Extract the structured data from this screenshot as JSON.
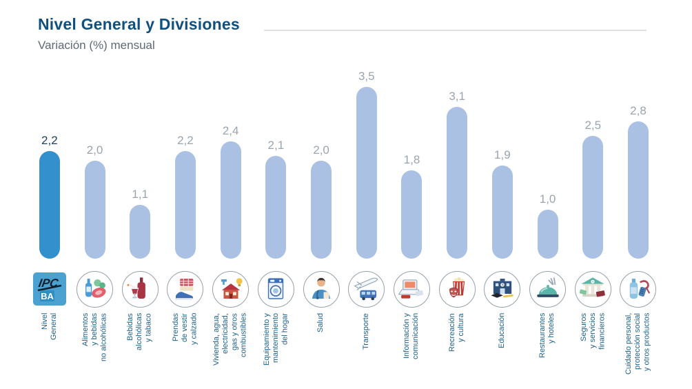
{
  "header": {
    "title": "Nivel General y Divisiones",
    "subtitle": "Variación (%) mensual"
  },
  "chart_data": {
    "type": "bar",
    "title": "Nivel General y Divisiones",
    "subtitle": "Variación (%) mensual",
    "unit": "% monthly variation",
    "ylim": [
      0,
      3.5
    ],
    "grid": false,
    "legend": "none",
    "value_labels_position": "above bars",
    "categories": [
      "Nivel\nGeneral",
      "Alimentos\ny bebidas\nno alcohólicas",
      "Bebidas\nalcohólicas\ny tabaco",
      "Prendas\nde vestir\ny calzado",
      "Vivienda, agua,\nelectricidad,\ngas y otros\ncombustibles",
      "Equipamiento y\nmantenimiento\ndel hogar",
      "Salud",
      "Transporte",
      "Información y\ncomunicación",
      "Recreación\ny cultura",
      "Educación",
      "Restaurantes\ny hoteles",
      "Seguros\ny servicios\nfinancieros",
      "Cuidado personal,\nprotección social\ny otros productos"
    ],
    "values": [
      2.2,
      2.0,
      1.1,
      2.2,
      2.4,
      2.1,
      2.0,
      3.5,
      1.8,
      3.1,
      1.9,
      1.0,
      2.5,
      2.8
    ],
    "value_labels": [
      "2,2",
      "2,0",
      "1,1",
      "2,2",
      "2,4",
      "2,1",
      "2,0",
      "3,5",
      "1,8",
      "3,1",
      "1,9",
      "1,0",
      "2,5",
      "2,8"
    ],
    "highlight_index": 0,
    "highlight_color": "#3390cc",
    "bar_color": "#aac1e4",
    "value_label_color": "#9aa4ad",
    "value_label_highlight_color": "#1d3c5e",
    "category_label_color": "#1e6189",
    "icons": [
      "ipc-ba-logo-icon",
      "food-and-beverages-icon",
      "alcohol-tobacco-icon",
      "clothing-footwear-icon",
      "housing-utilities-icon",
      "home-equipment-icon",
      "health-icon",
      "transport-icon",
      "information-communication-icon",
      "recreation-culture-icon",
      "education-icon",
      "restaurants-hotels-icon",
      "insurance-financial-icon",
      "personal-care-icon"
    ]
  },
  "logo": {
    "ipc_text": "IPC",
    "ba_text": "BA"
  }
}
